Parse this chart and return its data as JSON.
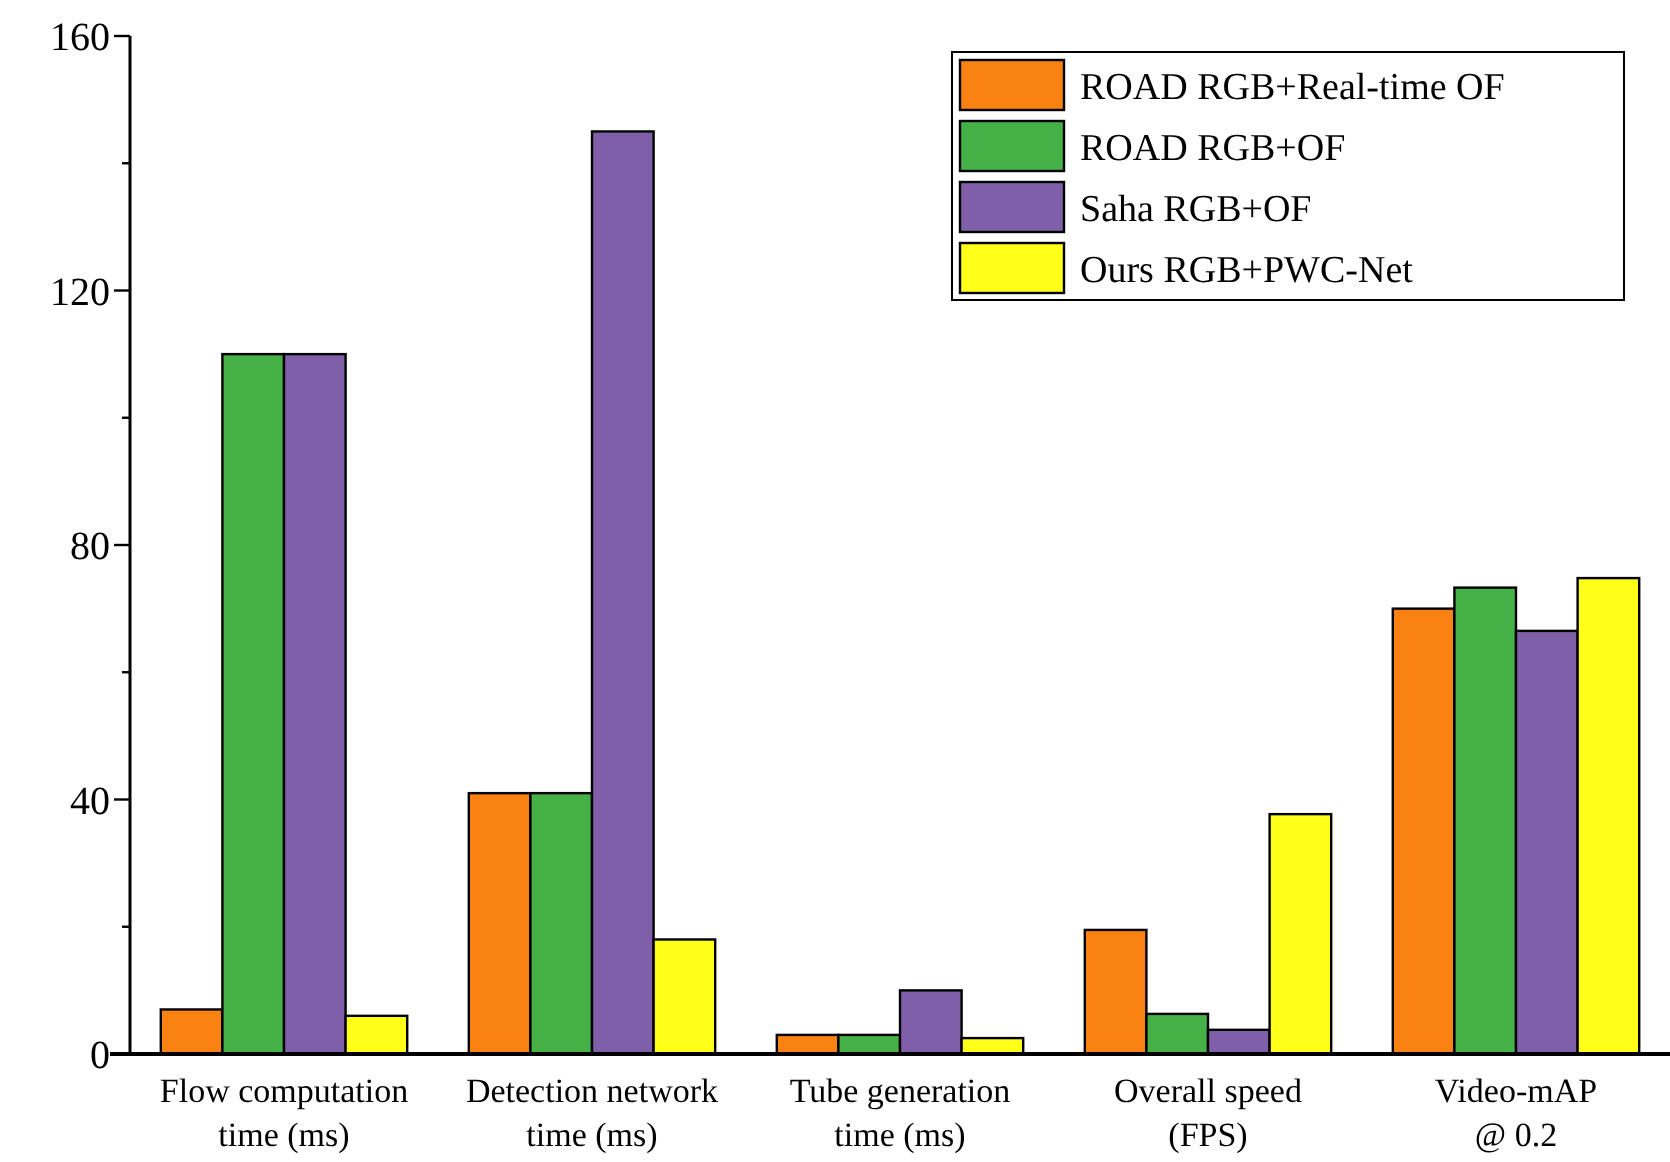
{
  "chart_data": {
    "type": "bar",
    "categories": [
      "Flow computation\ntime (ms)",
      "Detection network\ntime (ms)",
      "Tube generation\ntime (ms)",
      "Overall speed\n(FPS)",
      "Video-mAP\n@ 0.2"
    ],
    "series": [
      {
        "name": "ROAD RGB+Real-time OF",
        "color": "#f98213",
        "values": [
          7,
          41,
          3,
          19.5,
          70
        ]
      },
      {
        "name": "ROAD RGB+OF",
        "color": "#46b146",
        "values": [
          110,
          41,
          3,
          6.3,
          73.3
        ]
      },
      {
        "name": "Saha RGB+OF",
        "color": "#7f5fa8",
        "values": [
          110,
          145,
          10,
          3.8,
          66.5
        ]
      },
      {
        "name": "Ours RGB+PWC-Net",
        "color": "#ffff1a",
        "values": [
          6,
          18,
          2.5,
          37.7,
          74.8
        ]
      }
    ],
    "ylim": [
      0,
      160
    ],
    "yticks": [
      0,
      {
        "value": 20,
        "label": null
      },
      40,
      {
        "value": 60,
        "label": null
      },
      80,
      {
        "value": 100,
        "label": null
      },
      120,
      {
        "value": 140,
        "label": null
      },
      160
    ],
    "legend": "top right",
    "grid": false
  }
}
